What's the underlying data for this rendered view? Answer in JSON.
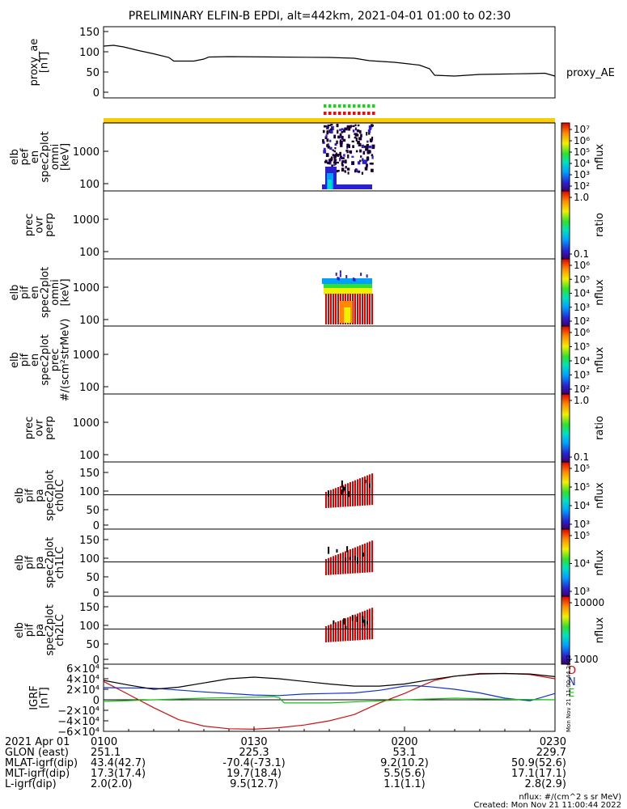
{
  "title": "PRELIMINARY ELFIN-B EPDI, alt=442km, 2021-04-01 01:00 to 02:30",
  "colors": {
    "frame": "#000000",
    "line_black": "#000000",
    "igrf_d": "#d01010",
    "igrf_n": "#1030d0",
    "igrf_e": "#10c010",
    "flag_yellow": "#f5d000",
    "flag_orange": "#ff8a00",
    "flag_green": "#20d020",
    "flag_red": "#e01010"
  },
  "panels": [
    {
      "id": "proxy_ae",
      "ylabel": [
        "proxy_ae",
        "[nT]"
      ],
      "yticks": [
        "150",
        "100",
        "50",
        "0"
      ],
      "right_label": "proxy_AE"
    },
    {
      "id": "elb_pef_en",
      "ylabel": [
        "elb",
        "pef",
        "en",
        "spec2plot",
        "omni",
        "[keV]"
      ],
      "yticks": [
        "1000",
        "100"
      ],
      "colorbar": {
        "ticks": [
          "10⁷",
          "10⁶",
          "10⁵",
          "10⁴",
          "10³",
          "10²"
        ],
        "label": "nflux"
      }
    },
    {
      "id": "elb_prec_ovr_perp_1",
      "ylabel": [
        "prec",
        "ovr",
        "perp"
      ],
      "yticks": [
        "1000",
        "100"
      ],
      "colorbar": {
        "ticks": [
          "1.0",
          "0.1"
        ],
        "label": "ratio"
      }
    },
    {
      "id": "elb_pif_en",
      "ylabel": [
        "elb",
        "pif",
        "en",
        "spec2plot",
        "omni",
        "[keV]"
      ],
      "yticks": [
        "1000",
        "100"
      ],
      "colorbar": {
        "ticks": [
          "10⁶",
          "10⁵",
          "10⁴",
          "10³",
          "10²"
        ],
        "label": "nflux"
      }
    },
    {
      "id": "elb_pif_en_prec",
      "ylabel": [
        "elb",
        "pif",
        "en",
        "spec2plot",
        "prec",
        "#/(scm²strMeV)"
      ],
      "yticks": [
        "1000",
        "100"
      ],
      "colorbar": {
        "ticks": [
          "10⁶",
          "10⁵",
          "10⁴",
          "10³",
          "10²"
        ],
        "label": "nflux"
      }
    },
    {
      "id": "elb_prec_ovr_perp_2",
      "ylabel": [
        "prec",
        "ovr",
        "perp"
      ],
      "yticks": [
        "1000",
        "100"
      ],
      "colorbar": {
        "ticks": [
          "1.0",
          "0.1"
        ],
        "label": "ratio"
      }
    },
    {
      "id": "elb_pif_pa_ch0",
      "ylabel": [
        "elb",
        "pif",
        "pa",
        "spec2plot",
        "ch0LC"
      ],
      "yticks": [
        "150",
        "100",
        "50",
        "0"
      ],
      "colorbar": {
        "ticks": [
          "10⁵",
          "10⁵",
          "10⁴",
          "10³"
        ],
        "label": "nflux"
      }
    },
    {
      "id": "elb_pif_pa_ch1",
      "ylabel": [
        "elb",
        "pif",
        "pa",
        "spec2plot",
        "ch1LC"
      ],
      "yticks": [
        "150",
        "100",
        "50",
        "0"
      ],
      "colorbar": {
        "ticks": [
          "10⁵",
          "10⁴",
          "10³"
        ],
        "label": "nflux"
      }
    },
    {
      "id": "elb_pif_pa_ch2",
      "ylabel": [
        "elb",
        "pif",
        "pa",
        "spec2plot",
        "ch2LC"
      ],
      "yticks": [
        "150",
        "100",
        "50",
        "0"
      ],
      "colorbar": {
        "ticks": [
          "10000",
          "1000"
        ],
        "label": "nflux"
      }
    },
    {
      "id": "igrf",
      "ylabel": [
        "IGRF",
        "[nT]"
      ],
      "yticks": [
        "6×10⁴",
        "4×10⁴",
        "2×10⁴",
        "0",
        "−2×10⁴",
        "−4×10⁴",
        "−6×10⁴"
      ],
      "legend": [
        "D",
        "N",
        "E"
      ]
    }
  ],
  "chart_data": {
    "type": "line",
    "title": "PRELIMINARY ELFIN-B EPDI, alt=442km, 2021-04-01 01:00 to 02:30",
    "xrange_minutes": [
      0,
      90
    ],
    "series": [
      {
        "name": "proxy_AE",
        "ylim": [
          0,
          150
        ],
        "x": [
          0,
          2,
          4,
          7,
          10,
          13,
          14,
          18,
          20,
          21,
          25,
          35,
          45,
          50,
          53,
          58,
          63,
          65,
          66,
          70,
          75,
          80,
          85,
          88,
          90
        ],
        "values": [
          114,
          116,
          112,
          103,
          95,
          86,
          77,
          77,
          82,
          87,
          88,
          87,
          86,
          84,
          78,
          74,
          67,
          58,
          42,
          40,
          44,
          45,
          46,
          47,
          40
        ]
      },
      {
        "name": "D",
        "ylim": [
          -60000,
          60000
        ],
        "x": [
          0,
          5,
          10,
          15,
          20,
          25,
          30,
          35,
          40,
          45,
          50,
          55,
          60,
          63,
          66,
          70,
          75,
          80,
          85,
          90
        ],
        "values": [
          35000,
          10000,
          -15000,
          -38000,
          -50000,
          -55000,
          -56000,
          -53000,
          -48000,
          -40000,
          -28000,
          -6000,
          12000,
          25000,
          37000,
          45000,
          50000,
          50000,
          48000,
          40000
        ]
      },
      {
        "name": "N",
        "ylim": [
          -60000,
          60000
        ],
        "x": [
          0,
          10,
          20,
          30,
          35,
          40,
          45,
          50,
          55,
          60,
          62,
          65,
          70,
          75,
          80,
          85,
          90
        ],
        "values": [
          23000,
          22000,
          15000,
          9000,
          8000,
          11000,
          12000,
          13000,
          18000,
          26000,
          27000,
          25000,
          20000,
          13000,
          3000,
          -2000,
          12000
        ]
      },
      {
        "name": "E",
        "ylim": [
          -60000,
          60000
        ],
        "x": [
          0,
          10,
          20,
          30,
          34,
          35,
          36,
          45,
          55,
          60,
          70,
          80,
          90
        ],
        "values": [
          -3000,
          0,
          3000,
          5000,
          6000,
          4000,
          -6000,
          -6000,
          -2000,
          0,
          3000,
          1000,
          0
        ]
      },
      {
        "name": "",
        "ylim": [
          -60000,
          60000
        ],
        "x": [
          0,
          5,
          10,
          15,
          20,
          25,
          30,
          35,
          40,
          45,
          50,
          55,
          60,
          65,
          70,
          75,
          80,
          85,
          90
        ],
        "values": [
          37000,
          28000,
          20000,
          24000,
          32000,
          40000,
          43000,
          40000,
          35000,
          30000,
          26000,
          26000,
          30000,
          38000,
          45000,
          49000,
          50000,
          49000,
          44000
        ]
      }
    ]
  },
  "xaxis": {
    "row_labels": [
      "2021 Apr 01",
      "GLON (east)",
      "MLAT-igrf(dip)",
      "MLT-igrf(dip)",
      "L-igrf(dip)"
    ],
    "columns": [
      [
        "0100",
        "251.1",
        "43.4(42.7)",
        "17.3(17.4)",
        "2.0(2.0)"
      ],
      [
        "0130",
        "225.3",
        "-70.4(-73.1)",
        "19.7(18.4)",
        "9.5(12.7)"
      ],
      [
        "0200",
        "53.1",
        "9.2(10.2)",
        "5.5(5.6)",
        "1.1(1.1)"
      ],
      [
        "0230",
        "229.7",
        "50.9(52.6)",
        "17.1(17.1)",
        "2.8(2.9)"
      ]
    ]
  },
  "footer": {
    "units": "nflux: #/(cm^2 s sr MeV)",
    "created": "Created: Mon Nov 21 11:00:44 2022",
    "vertical_stamp": "Mon Nov 21 11:00:44 2022"
  }
}
